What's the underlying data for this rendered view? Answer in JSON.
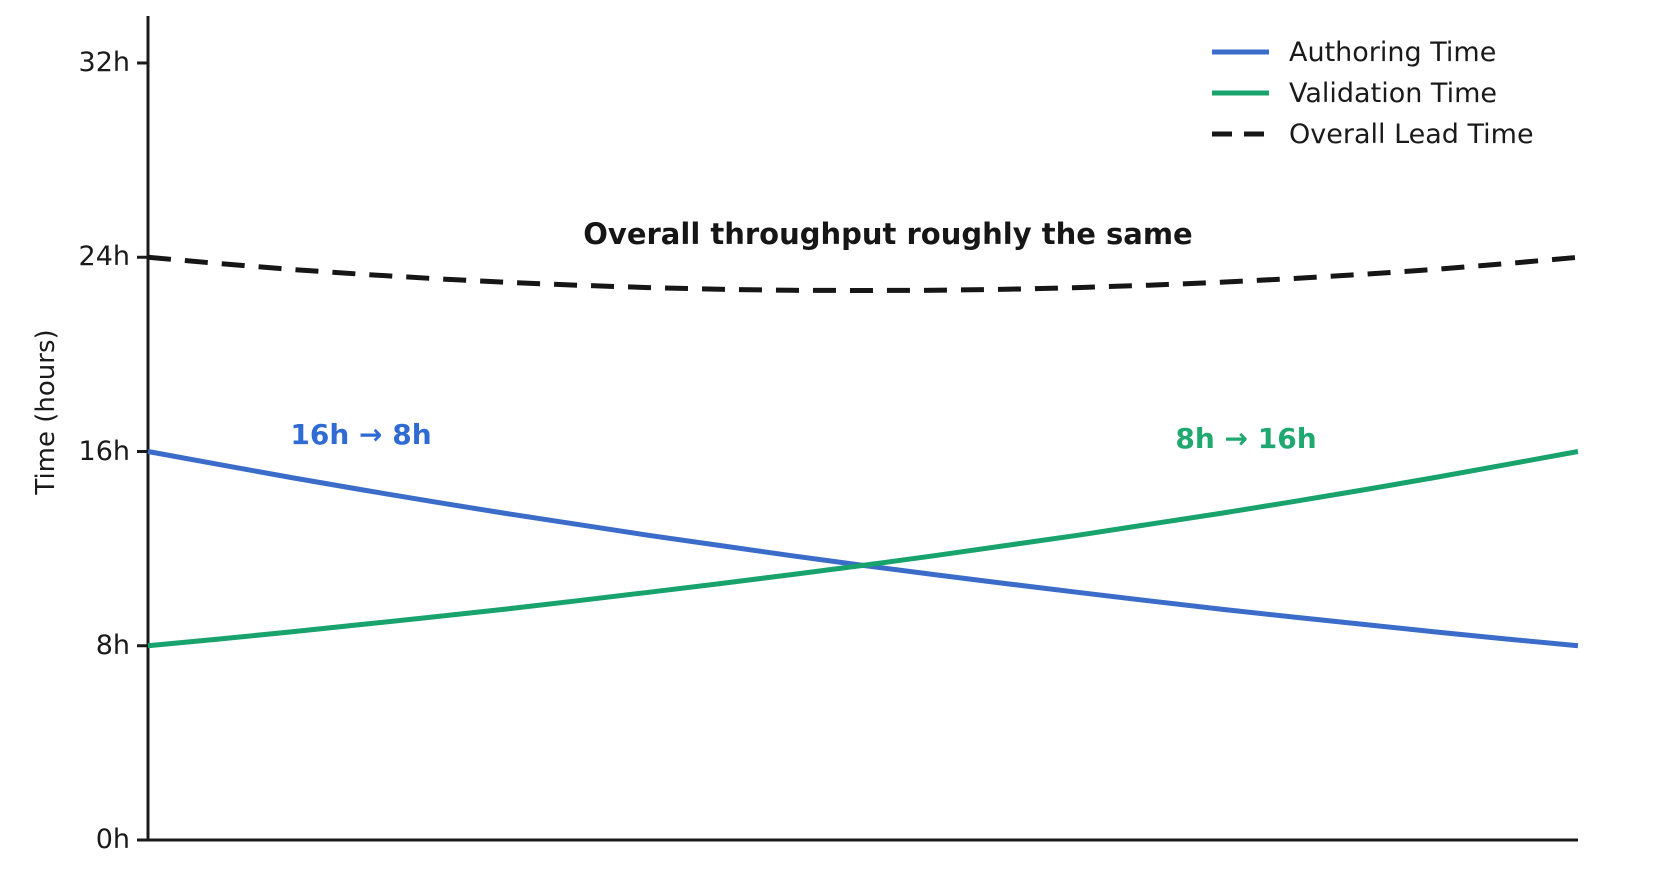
{
  "figure": {
    "background": "#ffffff",
    "axis_color": "#1a1a1a"
  },
  "chart_data": {
    "type": "line",
    "title": "",
    "xlabel": "",
    "ylabel": "Time (hours)",
    "ylim": [
      0,
      34
    ],
    "xlim": [
      0,
      1
    ],
    "grid": false,
    "legend_position": "upper right",
    "yticks": [
      {
        "value": 0,
        "label": "0h"
      },
      {
        "value": 8,
        "label": "8h"
      },
      {
        "value": 16,
        "label": "16h"
      },
      {
        "value": 24,
        "label": "24h"
      },
      {
        "value": 32,
        "label": "32h"
      }
    ],
    "x": [
      0,
      0.05,
      0.1,
      0.15,
      0.2,
      0.25,
      0.3,
      0.35,
      0.4,
      0.45,
      0.5,
      0.55,
      0.6,
      0.65,
      0.7,
      0.75,
      0.8,
      0.85,
      0.9,
      0.95,
      1
    ],
    "series": [
      {
        "name": "Authoring Time",
        "color": "#3B6CC9",
        "style": "solid",
        "values": [
          16,
          15.46,
          14.93,
          14.42,
          13.93,
          13.45,
          13.0,
          12.55,
          12.13,
          11.71,
          11.31,
          10.93,
          10.56,
          10.2,
          9.85,
          9.51,
          9.19,
          8.88,
          8.57,
          8.28,
          8
        ]
      },
      {
        "name": "Validation Time",
        "color": "#18A36C",
        "style": "solid",
        "values": [
          8,
          8.28,
          8.57,
          8.88,
          9.19,
          9.51,
          9.85,
          10.2,
          10.56,
          10.93,
          11.31,
          11.71,
          12.13,
          12.55,
          13.0,
          13.45,
          13.93,
          14.42,
          14.93,
          15.46,
          16
        ]
      },
      {
        "name": "Overall Lead Time",
        "color": "#161616",
        "style": "dashed",
        "values": [
          24,
          23.74,
          23.5,
          23.3,
          23.12,
          22.97,
          22.85,
          22.75,
          22.68,
          22.64,
          22.63,
          22.64,
          22.68,
          22.75,
          22.85,
          22.97,
          23.12,
          23.3,
          23.5,
          23.74,
          24
        ]
      }
    ],
    "annotations": [
      {
        "id": "authoring-change",
        "text": "16h → 8h",
        "color": "#2F6BD2"
      },
      {
        "id": "validation-change",
        "text": "8h → 16h",
        "color": "#1FA970"
      },
      {
        "id": "headline",
        "text": "Overall throughput roughly the same",
        "color": "#161616"
      }
    ]
  }
}
